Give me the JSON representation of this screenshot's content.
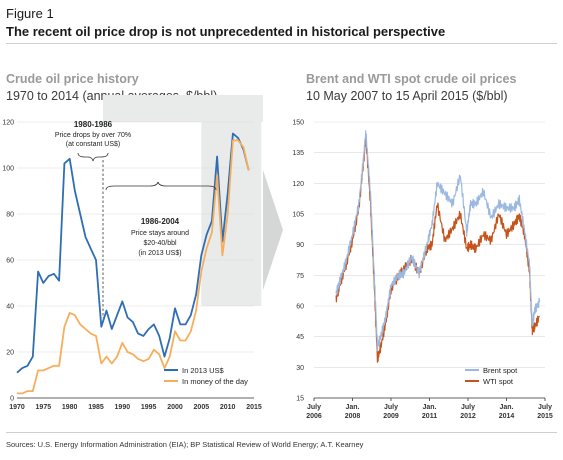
{
  "figure": {
    "label": "Figure 1",
    "title": "The recent oil price drop is not unprecedented in historical perspective",
    "source": "Sources: U.S. Energy Information Administration (EIA); BP Statistical Review of World Energy; A.T. Kearney"
  },
  "colors": {
    "blue": "#2f6db5",
    "orange": "#f7ae5c",
    "lightblue": "#9bb8e0",
    "darkorange": "#c5541c",
    "shade": "#e9ebea"
  },
  "chart_data": [
    {
      "type": "line",
      "title": "Crude oil price history",
      "subtitle": "1970 to 2014 (annual averages, $/bbl)",
      "xlim": [
        1970,
        2015
      ],
      "ylim": [
        0,
        120
      ],
      "x_ticks": [
        "1970",
        "1975",
        "1980",
        "1985",
        "1990",
        "1995",
        "2000",
        "2005",
        "2010",
        "2015"
      ],
      "y_ticks": [
        "0",
        "20",
        "40",
        "60",
        "80",
        "100",
        "120"
      ],
      "x": [
        1970,
        1971,
        1972,
        1973,
        1974,
        1975,
        1976,
        1977,
        1978,
        1979,
        1980,
        1981,
        1982,
        1983,
        1984,
        1985,
        1986,
        1987,
        1988,
        1989,
        1990,
        1991,
        1992,
        1993,
        1994,
        1995,
        1996,
        1997,
        1998,
        1999,
        2000,
        2001,
        2002,
        2003,
        2004,
        2005,
        2006,
        2007,
        2008,
        2009,
        2010,
        2011,
        2012,
        2013,
        2014
      ],
      "series": [
        {
          "name": "In 2013 US$",
          "color": "#2f6db5",
          "values": [
            11,
            13,
            14,
            18,
            55,
            50,
            53,
            54,
            51,
            102,
            104,
            90,
            80,
            70,
            65,
            60,
            31,
            38,
            30,
            36,
            42,
            35,
            33,
            28,
            27,
            30,
            32,
            27,
            18,
            26,
            39,
            32,
            32,
            36,
            45,
            62,
            71,
            77,
            105,
            68,
            89,
            115,
            113,
            108,
            99
          ]
        },
        {
          "name": "In money of the day",
          "color": "#f7ae5c",
          "values": [
            2,
            2,
            3,
            3,
            12,
            12,
            13,
            14,
            14,
            31,
            37,
            36,
            32,
            30,
            28,
            27,
            15,
            18,
            15,
            18,
            24,
            20,
            19,
            17,
            16,
            17,
            21,
            19,
            13,
            18,
            29,
            25,
            25,
            29,
            38,
            55,
            65,
            72,
            97,
            62,
            80,
            112,
            112,
            109,
            99
          ]
        }
      ],
      "annotations": [
        {
          "title": "1980-1986",
          "lines": [
            "Price drops by over 70%",
            "(at constant US$)"
          ]
        },
        {
          "title": "1986-2004",
          "lines": [
            "Price stays around",
            "$20-40/bbl",
            "(in 2013 US$)"
          ]
        }
      ],
      "legend": "bottom-right"
    },
    {
      "type": "line",
      "title": "Brent and WTI spot crude oil prices",
      "subtitle": "10 May 2007 to 15 April 2015 ($/bbl)",
      "xlim": [
        2006.5,
        2015.5
      ],
      "ylim": [
        15,
        150
      ],
      "x_ticks": [
        {
          "top": "July",
          "bottom": "2006"
        },
        {
          "top": "Jan.",
          "bottom": "2008"
        },
        {
          "top": "July",
          "bottom": "2009"
        },
        {
          "top": "Jan.",
          "bottom": "2011"
        },
        {
          "top": "July",
          "bottom": "2012"
        },
        {
          "top": "Jan.",
          "bottom": "2014"
        },
        {
          "top": "July",
          "bottom": "2015"
        }
      ],
      "y_ticks": [
        "15",
        "30",
        "45",
        "60",
        "75",
        "90",
        "105",
        "120",
        "135",
        "150"
      ],
      "series": [
        {
          "name": "Brent spot",
          "color": "#9bb8e0",
          "x": [
            2007.36,
            2007.5,
            2007.75,
            2008.0,
            2008.25,
            2008.45,
            2008.52,
            2008.7,
            2008.85,
            2008.97,
            2009.1,
            2009.3,
            2009.5,
            2009.8,
            2010.0,
            2010.3,
            2010.6,
            2010.9,
            2011.1,
            2011.3,
            2011.6,
            2011.9,
            2012.2,
            2012.45,
            2012.6,
            2012.8,
            2013.1,
            2013.4,
            2013.7,
            2014.0,
            2014.3,
            2014.5,
            2014.7,
            2014.9,
            2015.0,
            2015.1,
            2015.29
          ],
          "values": [
            66,
            72,
            82,
            95,
            110,
            135,
            145,
            115,
            75,
            40,
            45,
            55,
            70,
            75,
            76,
            84,
            76,
            90,
            100,
            120,
            115,
            110,
            124,
            96,
            110,
            110,
            116,
            103,
            110,
            108,
            108,
            112,
            97,
            80,
            50,
            58,
            62
          ]
        },
        {
          "name": "WTI spot",
          "color": "#c5541c",
          "x": [
            2007.36,
            2007.5,
            2007.75,
            2008.0,
            2008.25,
            2008.45,
            2008.52,
            2008.7,
            2008.85,
            2008.97,
            2009.1,
            2009.3,
            2009.5,
            2009.8,
            2010.0,
            2010.3,
            2010.6,
            2010.9,
            2011.1,
            2011.3,
            2011.6,
            2011.9,
            2012.2,
            2012.45,
            2012.6,
            2012.8,
            2013.1,
            2013.4,
            2013.7,
            2014.0,
            2014.3,
            2014.5,
            2014.7,
            2014.9,
            2015.0,
            2015.1,
            2015.29
          ],
          "values": [
            63,
            70,
            80,
            92,
            108,
            133,
            143,
            110,
            70,
            34,
            40,
            52,
            68,
            75,
            78,
            83,
            76,
            88,
            90,
            110,
            92,
            98,
            105,
            88,
            90,
            88,
            95,
            92,
            105,
            95,
            100,
            104,
            95,
            76,
            48,
            50,
            55
          ]
        }
      ],
      "legend": "bottom-right"
    }
  ]
}
